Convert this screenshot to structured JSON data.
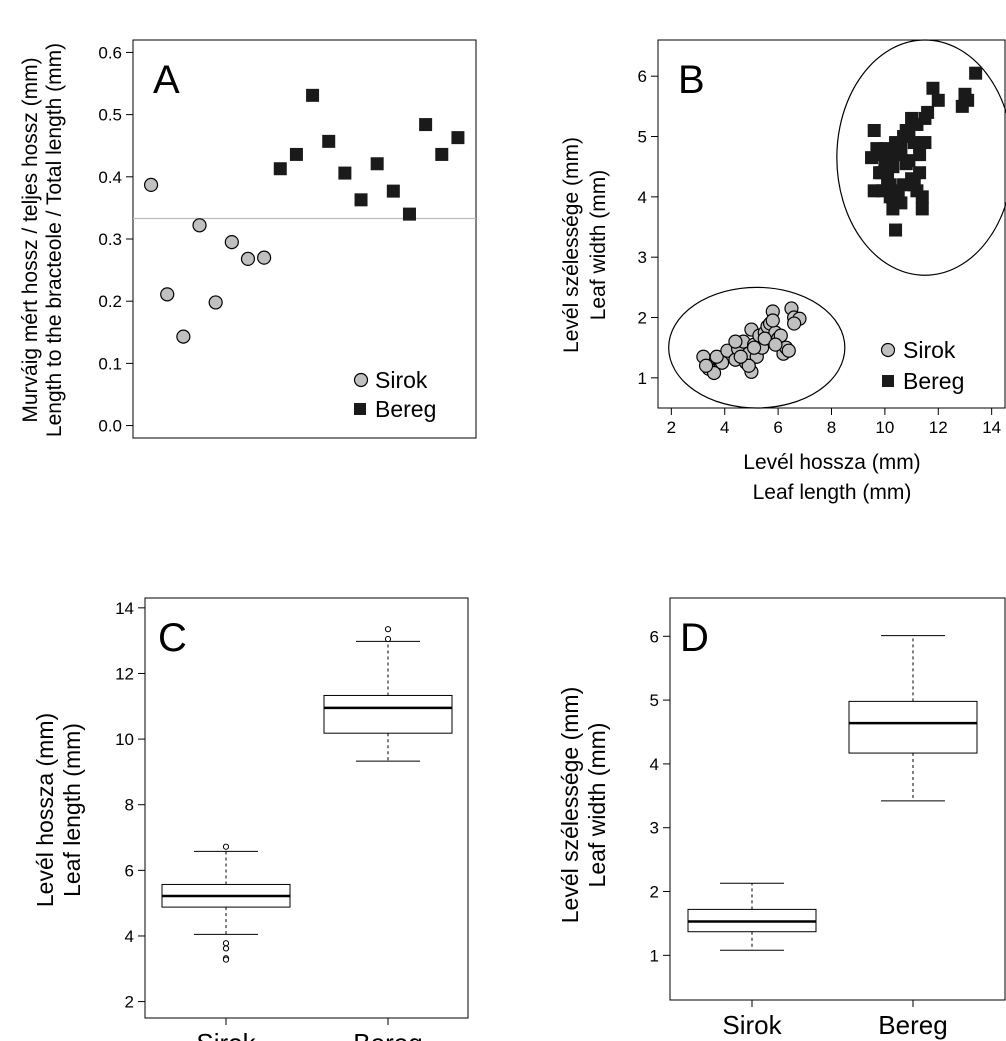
{
  "colors": {
    "sirok": "#c0c0c0",
    "bereg": "#1a1a1a",
    "refline": "#bbbbbb",
    "ink": "#000000"
  },
  "chart_data": [
    {
      "panel": "A",
      "type": "scatter",
      "ylabel": [
        "Murváig mért hossz / teljes hossz (mm)",
        "Length to the bracteole / Total length (mm)"
      ],
      "ylim": [
        -0.02,
        0.62
      ],
      "yticks": [
        0.0,
        0.1,
        0.2,
        0.3,
        0.4,
        0.5,
        0.6
      ],
      "ytick_labels": [
        "0.0",
        "0.1",
        "0.2",
        "0.3",
        "0.4",
        "0.5",
        "0.6"
      ],
      "xlim": [
        0.5,
        20.5
      ],
      "reference_line_y": 0.333,
      "legend": {
        "position": "bottom-right",
        "entries": [
          "Sirok",
          "Bereg"
        ]
      },
      "series": [
        {
          "name": "Sirok",
          "marker": "circle",
          "x": [
            1,
            2,
            3,
            4,
            5,
            6,
            7,
            8
          ],
          "y": [
            0.387,
            0.211,
            0.143,
            0.322,
            0.198,
            0.295,
            0.268,
            0.27
          ]
        },
        {
          "name": "Bereg",
          "marker": "square",
          "x": [
            9,
            10,
            11,
            12,
            13,
            14,
            15,
            16,
            17,
            18,
            19,
            20
          ],
          "y": [
            0.413,
            0.436,
            0.531,
            0.457,
            0.406,
            0.363,
            0.421,
            0.377,
            0.34,
            0.484,
            0.436,
            0.463
          ]
        }
      ]
    },
    {
      "panel": "B",
      "type": "scatter",
      "xlabel": [
        "Levél hossza (mm)",
        "Leaf length (mm)"
      ],
      "ylabel": [
        "Levél szélessége (mm)",
        "Leaf width (mm)"
      ],
      "xlim": [
        1.5,
        14.5
      ],
      "ylim": [
        0.5,
        6.6
      ],
      "xticks": [
        2,
        4,
        6,
        8,
        10,
        12,
        14
      ],
      "xtick_labels": [
        "2",
        "4",
        "6",
        "8",
        "10",
        "12",
        "14"
      ],
      "yticks": [
        1,
        2,
        3,
        4,
        5,
        6
      ],
      "ytick_labels": [
        "1",
        "2",
        "3",
        "4",
        "5",
        "6"
      ],
      "ellipses": [
        {
          "group": "Sirok",
          "cx": 5.2,
          "cy": 1.5,
          "rx": 3.3,
          "ry": 1.0
        },
        {
          "group": "Bereg",
          "cx": 11.5,
          "cy": 4.65,
          "rx": 3.3,
          "ry": 1.95
        }
      ],
      "legend": {
        "position": "bottom-right",
        "entries": [
          "Sirok",
          "Bereg"
        ]
      },
      "series": [
        {
          "name": "Sirok",
          "marker": "circle",
          "x": [
            3.2,
            3.4,
            3.6,
            3.8,
            3.9,
            3.3,
            3.7,
            4.1,
            4.4,
            4.5,
            4.7,
            4.8,
            4.9,
            5.0,
            5.0,
            5.1,
            5.2,
            5.3,
            5.4,
            5.5,
            5.6,
            5.7,
            5.8,
            5.9,
            6.0,
            6.1,
            6.2,
            6.3,
            6.4,
            6.5,
            6.6,
            6.8,
            4.9,
            5.5,
            4.6,
            5.8,
            6.6,
            5.1,
            4.4,
            5.9
          ],
          "y": [
            1.35,
            1.15,
            1.08,
            1.3,
            1.25,
            1.2,
            1.35,
            1.45,
            1.3,
            1.48,
            1.6,
            1.25,
            1.4,
            1.1,
            1.8,
            1.55,
            1.35,
            1.7,
            1.5,
            1.75,
            1.85,
            1.9,
            2.1,
            1.75,
            1.65,
            1.7,
            1.4,
            1.5,
            1.45,
            2.15,
            2.0,
            1.98,
            1.2,
            1.65,
            1.35,
            1.95,
            1.9,
            1.5,
            1.6,
            1.55
          ]
        },
        {
          "name": "Bereg",
          "marker": "square",
          "x": [
            9.5,
            9.6,
            9.7,
            9.8,
            9.9,
            10.0,
            10.1,
            10.2,
            10.3,
            10.4,
            10.5,
            10.6,
            10.7,
            10.8,
            10.9,
            11.0,
            11.1,
            11.2,
            11.3,
            11.4,
            11.5,
            11.6,
            11.8,
            12.0,
            12.9,
            13.0,
            13.1,
            13.4,
            9.6,
            10.0,
            10.4,
            10.6,
            10.9,
            11.0,
            11.2,
            11.4,
            9.8,
            10.2,
            10.8,
            11.1,
            10.5,
            11.3,
            10.2,
            9.9,
            10.7,
            11.5,
            10.3
          ],
          "y": [
            4.65,
            4.1,
            4.8,
            4.4,
            4.1,
            4.8,
            4.3,
            4.0,
            4.5,
            3.45,
            4.7,
            4.8,
            4.2,
            4.55,
            5.0,
            4.3,
            4.2,
            5.2,
            4.4,
            3.8,
            5.3,
            5.4,
            5.8,
            5.6,
            5.5,
            5.7,
            5.6,
            6.05,
            5.1,
            4.5,
            4.9,
            3.9,
            4.6,
            5.3,
            4.1,
            4.0,
            4.7,
            4.2,
            5.1,
            4.9,
            4.1,
            4.7,
            4.7,
            4.4,
            5.0,
            4.9,
            3.8
          ]
        }
      ]
    },
    {
      "panel": "C",
      "type": "box",
      "ylabel": [
        "Levél hossza (mm)",
        "Leaf length (mm)"
      ],
      "ylim": [
        1.5,
        14.3
      ],
      "yticks": [
        2,
        4,
        6,
        8,
        10,
        12,
        14
      ],
      "ytick_labels": [
        "2",
        "4",
        "6",
        "8",
        "10",
        "12",
        "14"
      ],
      "categories": [
        "Sirok",
        "Bereg"
      ],
      "boxes": [
        {
          "name": "Sirok",
          "whisker_low": 4.05,
          "q1": 4.88,
          "median": 5.22,
          "q3": 5.57,
          "whisker_high": 6.58,
          "outliers": [
            6.72,
            3.78,
            3.62,
            3.32,
            3.28
          ]
        },
        {
          "name": "Bereg",
          "whisker_low": 9.33,
          "q1": 10.18,
          "median": 10.95,
          "q3": 11.33,
          "whisker_high": 12.98,
          "outliers": [
            13.05,
            13.35
          ]
        }
      ]
    },
    {
      "panel": "D",
      "type": "box",
      "ylabel": [
        "Levél szélessége (mm)",
        "Leaf width (mm)"
      ],
      "ylim": [
        0.3,
        6.6
      ],
      "yticks": [
        1,
        2,
        3,
        4,
        5,
        6
      ],
      "ytick_labels": [
        "1",
        "2",
        "3",
        "4",
        "5",
        "6"
      ],
      "categories": [
        "Sirok",
        "Bereg"
      ],
      "boxes": [
        {
          "name": "Sirok",
          "whisker_low": 1.08,
          "q1": 1.37,
          "median": 1.53,
          "q3": 1.72,
          "whisker_high": 2.13,
          "outliers": []
        },
        {
          "name": "Bereg",
          "whisker_low": 3.42,
          "q1": 4.17,
          "median": 4.64,
          "q3": 4.98,
          "whisker_high": 6.01,
          "outliers": []
        }
      ]
    }
  ]
}
